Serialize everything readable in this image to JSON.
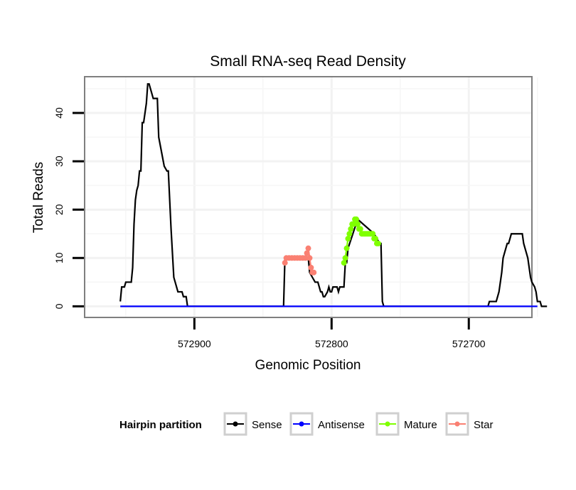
{
  "chart_data": {
    "type": "line",
    "title": "Small RNA-seq Read Density",
    "xlabel": "Genomic Position",
    "ylabel": "Total Reads",
    "x_reversed": true,
    "xlim": [
      572980,
      572654
    ],
    "ylim": [
      -2.3,
      47.5
    ],
    "xticks": [
      572900,
      572800,
      572700
    ],
    "xtick_labels": [
      "572900",
      "572800",
      "572700"
    ],
    "yticks": [
      0,
      10,
      20,
      30,
      40
    ],
    "ytick_labels": [
      "0",
      "10",
      "20",
      "30",
      "40"
    ],
    "grid": true,
    "legend": {
      "title": "Hairpin partition",
      "position": "bottom",
      "entries": [
        {
          "label": "Sense",
          "color": "#000000"
        },
        {
          "label": "Antisense",
          "color": "#0000ff"
        },
        {
          "label": "Mature",
          "color": "#7fff00"
        },
        {
          "label": "Star",
          "color": "#fa8072"
        }
      ]
    },
    "series": [
      {
        "name": "Sense",
        "color": "#000000",
        "points": [
          [
            572954,
            1
          ],
          [
            572953,
            4
          ],
          [
            572951,
            4
          ],
          [
            572950,
            5
          ],
          [
            572946,
            5
          ],
          [
            572945,
            8
          ],
          [
            572944,
            17
          ],
          [
            572943,
            22
          ],
          [
            572942,
            24
          ],
          [
            572941,
            25
          ],
          [
            572940,
            28
          ],
          [
            572939,
            28
          ],
          [
            572938,
            38
          ],
          [
            572937,
            38
          ],
          [
            572936,
            40
          ],
          [
            572935,
            42
          ],
          [
            572934,
            46
          ],
          [
            572933,
            46
          ],
          [
            572932,
            45
          ],
          [
            572930,
            43
          ],
          [
            572927,
            43
          ],
          [
            572926,
            35
          ],
          [
            572924,
            32
          ],
          [
            572922,
            29
          ],
          [
            572920,
            28
          ],
          [
            572919,
            28
          ],
          [
            572917,
            16
          ],
          [
            572915,
            6
          ],
          [
            572913,
            4
          ],
          [
            572912,
            3
          ],
          [
            572909,
            3
          ],
          [
            572908,
            2
          ],
          [
            572906,
            2
          ],
          [
            572905,
            0
          ],
          [
            572874,
            0
          ],
          [
            572835,
            0
          ],
          [
            572834,
            10
          ],
          [
            572833,
            10
          ],
          [
            572830,
            10
          ],
          [
            572825,
            10
          ],
          [
            572817,
            10
          ],
          [
            572816,
            7
          ],
          [
            572814,
            6
          ],
          [
            572812,
            5
          ],
          [
            572810,
            5
          ],
          [
            572809,
            4
          ],
          [
            572808,
            3
          ],
          [
            572807,
            3
          ],
          [
            572806,
            2
          ],
          [
            572805,
            2
          ],
          [
            572803,
            3
          ],
          [
            572802,
            4
          ],
          [
            572801,
            3
          ],
          [
            572800,
            3
          ],
          [
            572799,
            4
          ],
          [
            572796,
            4
          ],
          [
            572795,
            3
          ],
          [
            572794,
            4
          ],
          [
            572793,
            4
          ],
          [
            572791,
            4
          ],
          [
            572790,
            9
          ],
          [
            572789,
            9
          ],
          [
            572788,
            12
          ],
          [
            572781,
            18
          ],
          [
            572769,
            15
          ],
          [
            572765,
            13
          ],
          [
            572764,
            13
          ],
          [
            572763,
            1
          ],
          [
            572762,
            0
          ],
          [
            572720,
            0
          ],
          [
            572686,
            0
          ],
          [
            572685,
            1
          ],
          [
            572680,
            1
          ],
          [
            572679,
            2
          ],
          [
            572678,
            3
          ],
          [
            572677,
            5
          ],
          [
            572676,
            7
          ],
          [
            572675,
            10
          ],
          [
            572674,
            11
          ],
          [
            572673,
            12
          ],
          [
            572672,
            13
          ],
          [
            572671,
            13
          ],
          [
            572670,
            14
          ],
          [
            572669,
            15
          ],
          [
            572661,
            15
          ],
          [
            572660,
            13
          ],
          [
            572659,
            12
          ],
          [
            572658,
            11
          ],
          [
            572657,
            10
          ],
          [
            572656,
            8
          ],
          [
            572655,
            6
          ],
          [
            572654,
            5
          ],
          [
            572652,
            4
          ],
          [
            572651,
            3
          ],
          [
            572650,
            1
          ],
          [
            572648,
            1
          ],
          [
            572647,
            0
          ],
          [
            572643,
            0
          ]
        ]
      },
      {
        "name": "Antisense",
        "color": "#0000ff",
        "points": [
          [
            572954,
            0
          ],
          [
            572650,
            0
          ]
        ]
      },
      {
        "name": "Star",
        "color": "#fa8072",
        "points": [
          [
            572834,
            9
          ],
          [
            572833,
            10
          ],
          [
            572831,
            10
          ],
          [
            572829,
            10
          ],
          [
            572827,
            10
          ],
          [
            572825,
            10
          ],
          [
            572823,
            10
          ],
          [
            572821,
            10
          ],
          [
            572819,
            10
          ],
          [
            572818,
            11
          ],
          [
            572817,
            12
          ],
          [
            572816,
            10
          ],
          [
            572815,
            8
          ],
          [
            572814,
            7
          ],
          [
            572813,
            7
          ]
        ]
      },
      {
        "name": "Mature",
        "color": "#7fff00",
        "points": [
          [
            572791,
            9
          ],
          [
            572790,
            10
          ],
          [
            572789,
            12
          ],
          [
            572788,
            14
          ],
          [
            572787,
            15
          ],
          [
            572786,
            16
          ],
          [
            572785,
            17
          ],
          [
            572784,
            17
          ],
          [
            572783,
            18
          ],
          [
            572782,
            18
          ],
          [
            572781,
            17
          ],
          [
            572780,
            16
          ],
          [
            572779,
            16
          ],
          [
            572778,
            15
          ],
          [
            572777,
            15
          ],
          [
            572776,
            15
          ],
          [
            572775,
            15
          ],
          [
            572774,
            15
          ],
          [
            572773,
            15
          ],
          [
            572772,
            15
          ],
          [
            572771,
            15
          ],
          [
            572770,
            15
          ],
          [
            572769,
            14
          ],
          [
            572768,
            14
          ],
          [
            572767,
            13
          ],
          [
            572766,
            13
          ]
        ]
      }
    ]
  }
}
